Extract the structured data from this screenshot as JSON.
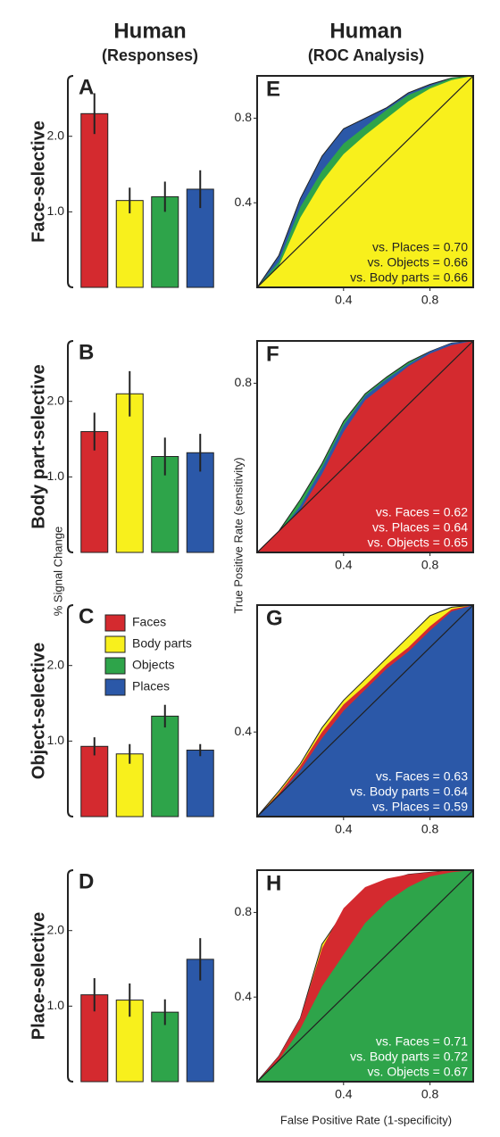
{
  "figure": {
    "left_title": "Human",
    "left_subtitle": "(Responses)",
    "right_title": "Human",
    "right_subtitle": "(ROC Analysis)",
    "bar_ylabel": "% Signal Change",
    "roc_ylabel": "True Positive Rate (sensitivity)",
    "roc_xlabel": "False Positive Rate (1-specificity)"
  },
  "chart_data": [
    {
      "type": "bar",
      "title": "A",
      "ylabel": "Face-selective",
      "ylim": [
        0,
        2.8
      ],
      "yticks": [
        {
          "value": 1,
          "label": "1.0"
        },
        {
          "value": 2,
          "label": "2.0"
        }
      ],
      "series": [
        {
          "color": "#d42a2f",
          "values": [
            2.3
          ],
          "errors": [
            0.27
          ]
        },
        {
          "color": "#f8f01c",
          "values": [
            1.15
          ],
          "errors": [
            0.17
          ]
        },
        {
          "color": "#2ea44a",
          "values": [
            1.2
          ],
          "errors": [
            0.2
          ]
        },
        {
          "color": "#2b58a8",
          "values": [
            1.3
          ],
          "errors": [
            0.25
          ]
        }
      ]
    },
    {
      "type": "bar",
      "title": "B",
      "ylabel": "Body part-selective",
      "ylim": [
        0,
        2.8
      ],
      "yticks": [
        {
          "value": 1,
          "label": "1.0"
        },
        {
          "value": 2,
          "label": "2.0"
        }
      ],
      "series": [
        {
          "color": "#d42a2f",
          "values": [
            1.6
          ],
          "errors": [
            0.25
          ]
        },
        {
          "color": "#f8f01c",
          "values": [
            2.1
          ],
          "errors": [
            0.3
          ]
        },
        {
          "color": "#2ea44a",
          "values": [
            1.27
          ],
          "errors": [
            0.25
          ]
        },
        {
          "color": "#2b58a8",
          "values": [
            1.32
          ],
          "errors": [
            0.25
          ]
        }
      ]
    },
    {
      "type": "bar",
      "title": "C",
      "ylabel": "Object-selective",
      "ylim": [
        0,
        2.8
      ],
      "yticks": [
        {
          "value": 1,
          "label": "1.0"
        },
        {
          "value": 2,
          "label": "2.0"
        }
      ],
      "legend": true,
      "series": [
        {
          "name": "Faces",
          "color": "#d42a2f",
          "values": [
            0.93
          ],
          "errors": [
            0.12
          ]
        },
        {
          "name": "Body parts",
          "color": "#f8f01c",
          "values": [
            0.83
          ],
          "errors": [
            0.13
          ]
        },
        {
          "name": "Objects",
          "color": "#2ea44a",
          "values": [
            1.33
          ],
          "errors": [
            0.15
          ]
        },
        {
          "name": "Places",
          "color": "#2b58a8",
          "values": [
            0.88
          ],
          "errors": [
            0.08
          ]
        }
      ]
    },
    {
      "type": "bar",
      "title": "D",
      "ylabel": "Place-selective",
      "ylim": [
        0,
        2.8
      ],
      "yticks": [
        {
          "value": 1,
          "label": "1.0"
        },
        {
          "value": 2,
          "label": "2.0"
        }
      ],
      "series": [
        {
          "color": "#d42a2f",
          "values": [
            1.15
          ],
          "errors": [
            0.22
          ]
        },
        {
          "color": "#f8f01c",
          "values": [
            1.08
          ],
          "errors": [
            0.22
          ]
        },
        {
          "color": "#2ea44a",
          "values": [
            0.92
          ],
          "errors": [
            0.17
          ]
        },
        {
          "color": "#2b58a8",
          "values": [
            1.62
          ],
          "errors": [
            0.28
          ]
        }
      ]
    },
    {
      "type": "area",
      "title": "E",
      "xlim": [
        0,
        1
      ],
      "ylim": [
        0,
        1
      ],
      "xticks": [
        0.4,
        0.8
      ],
      "yticks": [
        0.4,
        0.8
      ],
      "annotation_color": "#222",
      "annotations": [
        "vs. Places = 0.70",
        "vs. Objects = 0.66",
        "vs. Body parts = 0.66"
      ],
      "x": [
        0,
        0.1,
        0.2,
        0.3,
        0.4,
        0.5,
        0.6,
        0.7,
        0.8,
        0.9,
        1
      ],
      "series": [
        {
          "color": "#2b58a8",
          "values": [
            0,
            0.15,
            0.42,
            0.62,
            0.75,
            0.8,
            0.85,
            0.92,
            0.96,
            0.99,
            1
          ]
        },
        {
          "color": "#2ea44a",
          "values": [
            0,
            0.12,
            0.38,
            0.55,
            0.68,
            0.76,
            0.84,
            0.91,
            0.95,
            0.99,
            1
          ]
        },
        {
          "color": "#f8f01c",
          "values": [
            0,
            0.1,
            0.33,
            0.5,
            0.63,
            0.72,
            0.8,
            0.88,
            0.94,
            0.98,
            1
          ]
        }
      ]
    },
    {
      "type": "area",
      "title": "F",
      "xlim": [
        0,
        1
      ],
      "ylim": [
        0,
        1
      ],
      "xticks": [
        0.4,
        0.8
      ],
      "yticks": [
        0.8
      ],
      "annotation_color": "#fff",
      "annotations": [
        "vs. Faces = 0.62",
        "vs. Places = 0.64",
        "vs. Objects = 0.65"
      ],
      "x": [
        0,
        0.1,
        0.2,
        0.3,
        0.4,
        0.5,
        0.6,
        0.7,
        0.8,
        0.9,
        1
      ],
      "series": [
        {
          "color": "#2ea44a",
          "values": [
            0,
            0.1,
            0.25,
            0.42,
            0.62,
            0.75,
            0.83,
            0.9,
            0.95,
            0.99,
            1
          ]
        },
        {
          "color": "#2b58a8",
          "values": [
            0,
            0.09,
            0.22,
            0.4,
            0.6,
            0.74,
            0.82,
            0.89,
            0.95,
            0.99,
            1
          ]
        },
        {
          "color": "#d42a2f",
          "values": [
            0,
            0.08,
            0.2,
            0.37,
            0.57,
            0.72,
            0.8,
            0.88,
            0.94,
            0.98,
            1
          ]
        }
      ]
    },
    {
      "type": "area",
      "title": "G",
      "xlim": [
        0,
        1
      ],
      "ylim": [
        0,
        1
      ],
      "xticks": [
        0.4,
        0.8
      ],
      "yticks": [
        0.4
      ],
      "annotation_color": "#fff",
      "annotations": [
        "vs. Faces = 0.63",
        "vs. Body parts = 0.64",
        "vs. Places = 0.59"
      ],
      "x": [
        0,
        0.1,
        0.2,
        0.3,
        0.4,
        0.5,
        0.6,
        0.7,
        0.8,
        0.9,
        1
      ],
      "series": [
        {
          "color": "#f8f01c",
          "values": [
            0,
            0.12,
            0.25,
            0.42,
            0.55,
            0.65,
            0.75,
            0.85,
            0.95,
            0.99,
            1
          ]
        },
        {
          "color": "#d42a2f",
          "values": [
            0,
            0.11,
            0.24,
            0.4,
            0.53,
            0.62,
            0.72,
            0.8,
            0.9,
            0.98,
            1
          ]
        },
        {
          "color": "#2b58a8",
          "values": [
            0,
            0.1,
            0.22,
            0.37,
            0.5,
            0.6,
            0.7,
            0.78,
            0.88,
            0.97,
            1
          ]
        }
      ]
    },
    {
      "type": "area",
      "title": "H",
      "xlim": [
        0,
        1
      ],
      "ylim": [
        0,
        1
      ],
      "xticks": [
        0.4,
        0.8
      ],
      "yticks": [
        0.4,
        0.8
      ],
      "annotation_color": "#fff",
      "annotations": [
        "vs. Faces = 0.71",
        "vs. Body parts = 0.72",
        "vs. Objects = 0.67"
      ],
      "x": [
        0,
        0.1,
        0.2,
        0.3,
        0.4,
        0.5,
        0.6,
        0.7,
        0.8,
        0.9,
        1
      ],
      "series": [
        {
          "color": "#f8f01c",
          "values": [
            0,
            0.12,
            0.3,
            0.65,
            0.8,
            0.9,
            0.95,
            0.98,
            0.99,
            1,
            1
          ]
        },
        {
          "color": "#d42a2f",
          "values": [
            0,
            0.12,
            0.3,
            0.63,
            0.82,
            0.92,
            0.96,
            0.98,
            0.99,
            1,
            1
          ]
        },
        {
          "color": "#2ea44a",
          "values": [
            0,
            0.1,
            0.25,
            0.45,
            0.6,
            0.75,
            0.85,
            0.92,
            0.97,
            0.99,
            1
          ]
        }
      ]
    }
  ]
}
